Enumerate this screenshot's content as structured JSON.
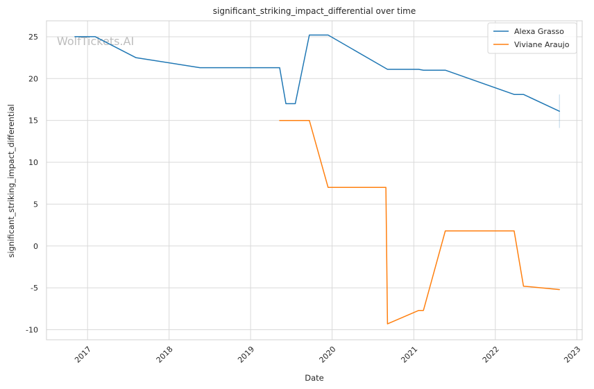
{
  "chart_data": {
    "type": "line",
    "title": "significant_striking_impact_differential over time",
    "xlabel": "Date",
    "ylabel": "significant_striking_impact_differential",
    "watermark": "WolfTickets.AI",
    "x_ticks": [
      "2017",
      "2018",
      "2019",
      "2020",
      "2021",
      "2022",
      "2023"
    ],
    "y_ticks": [
      -10,
      -5,
      0,
      5,
      10,
      15,
      20,
      25
    ],
    "xlim": [
      "2016-07-01",
      "2023-01-25"
    ],
    "ylim": [
      -11.2,
      26.9
    ],
    "grid": true,
    "legend_position": "top-right",
    "series": [
      {
        "name": "Alexa Grasso",
        "color": "#1f77b4",
        "points": [
          [
            "2016-11-05",
            25.0
          ],
          [
            "2017-02-04",
            25.0
          ],
          [
            "2017-08-05",
            22.5
          ],
          [
            "2018-05-19",
            21.3
          ],
          [
            "2019-05-11",
            21.3
          ],
          [
            "2019-06-08",
            17.0
          ],
          [
            "2019-07-20",
            17.0
          ],
          [
            "2019-09-21",
            25.2
          ],
          [
            "2019-12-14",
            25.2
          ],
          [
            "2020-09-05",
            21.1
          ],
          [
            "2021-01-23",
            21.1
          ],
          [
            "2021-02-13",
            21.0
          ],
          [
            "2021-05-22",
            21.0
          ],
          [
            "2022-03-26",
            18.1
          ],
          [
            "2022-05-07",
            18.1
          ],
          [
            "2022-10-15",
            16.1
          ]
        ],
        "error_bar": {
          "x": "2022-10-15",
          "low": 14.1,
          "high": 18.1
        }
      },
      {
        "name": "Viviane Araujo",
        "color": "#ff7f0e",
        "points": [
          [
            "2019-05-11",
            15.0
          ],
          [
            "2019-09-21",
            15.0
          ],
          [
            "2019-12-14",
            7.0
          ],
          [
            "2020-08-29",
            7.0
          ],
          [
            "2020-09-05",
            -9.3
          ],
          [
            "2021-01-23",
            -7.7
          ],
          [
            "2021-02-13",
            -7.7
          ],
          [
            "2021-05-22",
            1.8
          ],
          [
            "2022-03-26",
            1.8
          ],
          [
            "2022-05-07",
            -4.8
          ],
          [
            "2022-10-15",
            -5.2
          ]
        ]
      }
    ]
  }
}
